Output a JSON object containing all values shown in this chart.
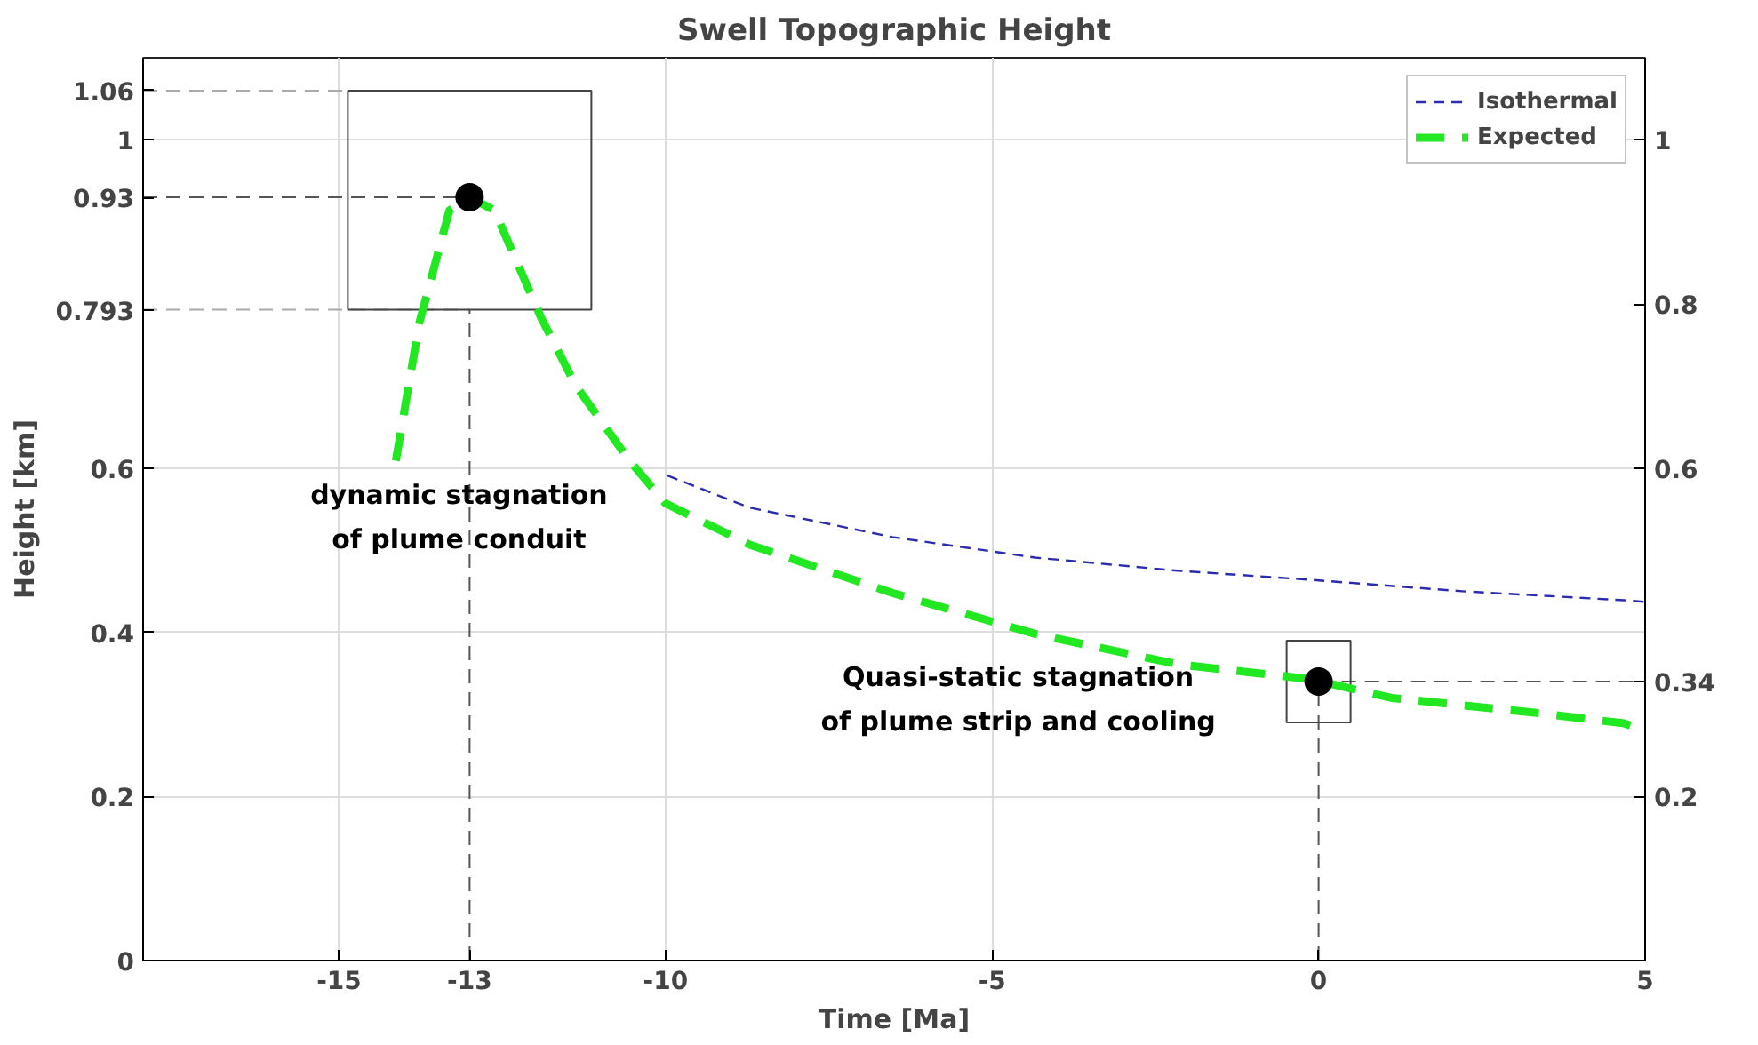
{
  "chart_data": {
    "type": "line",
    "title": "Swell Topographic Height",
    "xlabel": "Time [Ma]",
    "ylabel": "Height [km]",
    "xlim": [
      -18,
      5
    ],
    "xticks": [
      -15,
      -13,
      -10,
      -5,
      0,
      5
    ],
    "ylim": [
      0,
      1.1
    ],
    "yticks": [
      0,
      0.2,
      0.4,
      0.6,
      0.793,
      0.93,
      1,
      1.06
    ],
    "y2lim": [
      0,
      1.1
    ],
    "y2ticks": [
      0.2,
      0.34,
      0.6,
      0.8,
      1
    ],
    "grid": true,
    "legend": "top right",
    "line_style": "dashed",
    "series": [
      {
        "name": "Isothermal",
        "color": "#2b2bb0",
        "x": [
          -9.97,
          -8.72,
          -6.53,
          -4.34,
          -2.16,
          -0.14,
          2.2,
          4.68,
          5
        ],
        "values": [
          0.591,
          0.552,
          0.516,
          0.491,
          0.475,
          0.464,
          0.45,
          0.439,
          0.437
        ]
      },
      {
        "name": "Expected",
        "color": "#22e822",
        "x": [
          -14.13,
          -13.77,
          -13.31,
          -13,
          -12.62,
          -11.91,
          -11.37,
          -10.55,
          -10.0,
          -8.72,
          -6.53,
          -4.34,
          -2.16,
          -0.14,
          1.12,
          3.31,
          4.68,
          5
        ],
        "values": [
          0.609,
          0.777,
          0.914,
          0.93,
          0.914,
          0.784,
          0.7,
          0.609,
          0.557,
          0.507,
          0.448,
          0.398,
          0.361,
          0.343,
          0.32,
          0.302,
          0.289,
          0.28
        ]
      },
      {
        "type": "scatter",
        "color": "#000000",
        "marker": "circle",
        "x": [
          -13,
          0
        ],
        "values": [
          0.93,
          0.34
        ]
      }
    ],
    "ref_lines": [
      {
        "axis": "y",
        "value": 1.06,
        "color": "#aaaaaa",
        "line_style": "dashed"
      },
      {
        "axis": "y",
        "value": 0.93,
        "color": "#555555",
        "line_style": "dashed"
      },
      {
        "axis": "y",
        "value": 0.793,
        "color": "#aaaaaa",
        "line_style": "dashed"
      },
      {
        "axis": "y2",
        "value": 0.34,
        "color": "#555555",
        "line_style": "dashed"
      },
      {
        "axis": "x",
        "value": -13,
        "color": "#555555",
        "line_style": "dashed"
      },
      {
        "axis": "x",
        "value": 0,
        "color": "#555555",
        "line_style": "dashed"
      }
    ],
    "annotations": [
      "dynamic stagnation\nof plume conduit",
      "Quasi-static stagnation\nof plume strip and cooling"
    ]
  }
}
